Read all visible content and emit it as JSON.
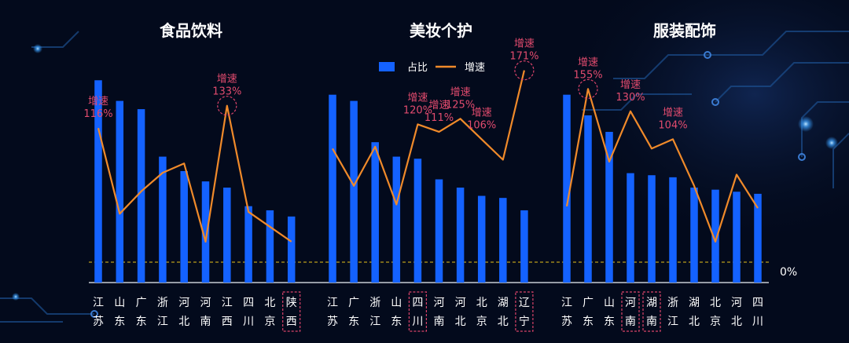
{
  "colors": {
    "background": "#030a1c",
    "bar": "#1462ff",
    "line": "#f08a2a",
    "annotation": "#e24b6e",
    "highlight_box": "#d9436a",
    "zero_line": "#e8c21a",
    "title": "#ffffff",
    "tick": "#ffffff"
  },
  "legend": {
    "bar_label": "占比",
    "line_label": "增速"
  },
  "zero_label": "0%",
  "chart_data": [
    {
      "type": "bar",
      "title": "食品饮料",
      "categories": [
        [
          "江",
          "苏"
        ],
        [
          "山",
          "东"
        ],
        [
          "广",
          "东"
        ],
        [
          "浙",
          "江"
        ],
        [
          "河",
          "北"
        ],
        [
          "河",
          "南"
        ],
        [
          "江",
          "西"
        ],
        [
          "四",
          "川"
        ],
        [
          "北",
          "京"
        ],
        [
          "陕",
          "西"
        ]
      ],
      "series": [
        {
          "values": [
            0.98,
            0.88,
            0.84,
            0.61,
            0.54,
            0.49,
            0.46,
            0.37,
            0.35,
            0.32
          ]
        },
        {
          "values": [
            0.72,
            0.26,
            0.38,
            0.48,
            0.53,
            0.11,
            0.84,
            0.27,
            0.19,
            0.11
          ]
        }
      ],
      "annotations": [
        {
          "category": 0,
          "label": "增速",
          "value": "116%"
        },
        {
          "category": 6,
          "label": "增速",
          "value": "133%",
          "circled": true
        }
      ],
      "highlighted_categories": [
        9
      ]
    },
    {
      "type": "bar",
      "title": "美妆个护",
      "categories": [
        [
          "江",
          "苏"
        ],
        [
          "广",
          "东"
        ],
        [
          "浙",
          "江"
        ],
        [
          "山",
          "东"
        ],
        [
          "四",
          "川"
        ],
        [
          "河",
          "南"
        ],
        [
          "河",
          "北"
        ],
        [
          "北",
          "京"
        ],
        [
          "湖",
          "北"
        ],
        [
          "辽",
          "宁"
        ]
      ],
      "series": [
        {
          "values": [
            0.91,
            0.88,
            0.68,
            0.61,
            0.6,
            0.5,
            0.46,
            0.42,
            0.41,
            0.35
          ]
        },
        {
          "values": [
            0.61,
            0.41,
            0.62,
            0.31,
            0.74,
            0.7,
            0.77,
            0.66,
            0.55,
            1.03
          ]
        }
      ],
      "annotations": [
        {
          "category": 4,
          "label": "增速",
          "value": "120%"
        },
        {
          "category": 5,
          "label": "增速",
          "value": "111%"
        },
        {
          "category": 6,
          "label": "增速",
          "value": "125%"
        },
        {
          "category": 7,
          "label": "增速",
          "value": "106%"
        },
        {
          "category": 9,
          "label": "增速",
          "value": "171%",
          "circled": true
        }
      ],
      "highlighted_categories": [
        4,
        9
      ]
    },
    {
      "type": "bar",
      "title": "服装配饰",
      "categories": [
        [
          "江",
          "苏"
        ],
        [
          "广",
          "东"
        ],
        [
          "山",
          "东"
        ],
        [
          "河",
          "南"
        ],
        [
          "湖",
          "南"
        ],
        [
          "浙",
          "江"
        ],
        [
          "湖",
          "北"
        ],
        [
          "北",
          "京"
        ],
        [
          "河",
          "北"
        ],
        [
          "四",
          "川"
        ]
      ],
      "series": [
        {
          "values": [
            0.91,
            0.81,
            0.73,
            0.53,
            0.52,
            0.51,
            0.46,
            0.45,
            0.44,
            0.43
          ]
        },
        {
          "values": [
            0.3,
            0.93,
            0.54,
            0.81,
            0.61,
            0.66,
            0.41,
            0.11,
            0.47,
            0.29
          ]
        }
      ],
      "annotations": [
        {
          "category": 1,
          "label": "增速",
          "value": "155%",
          "circled": true
        },
        {
          "category": 3,
          "label": "增速",
          "value": "130%"
        },
        {
          "category": 5,
          "label": "增速",
          "value": "104%"
        }
      ],
      "highlighted_categories": [
        3,
        4
      ]
    }
  ]
}
